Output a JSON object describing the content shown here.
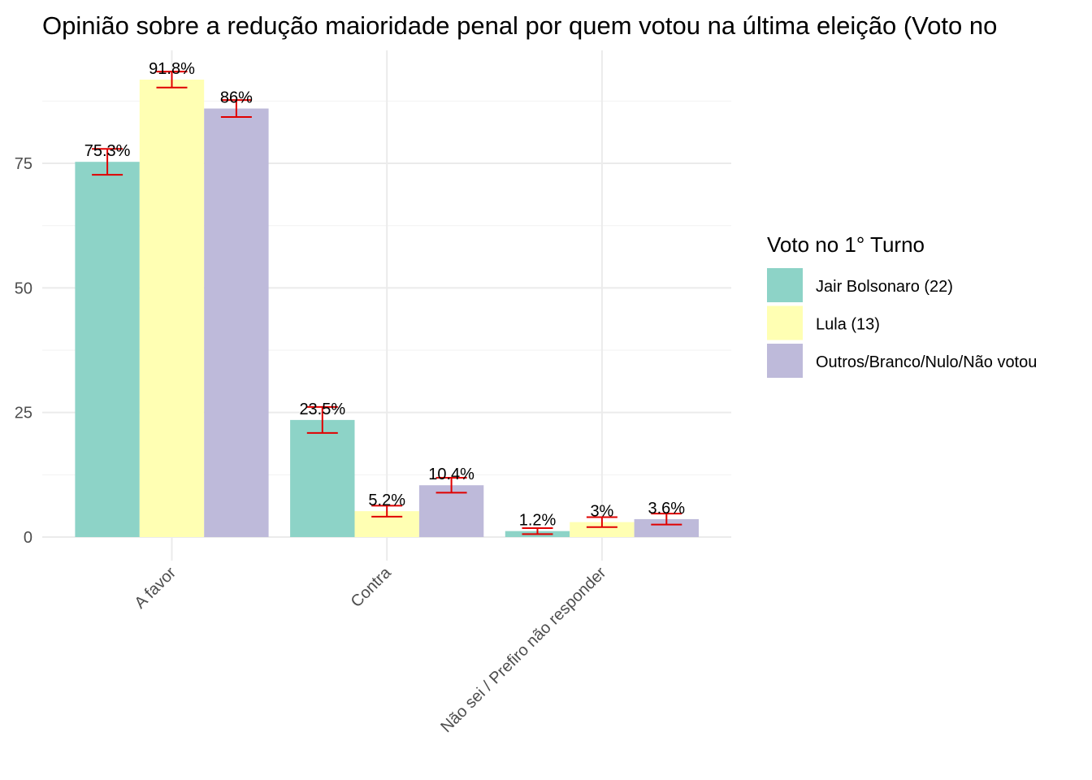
{
  "chart_data": {
    "type": "bar",
    "title": "Opinião sobre a redução maioridade penal por quem votou na última eleição (Voto no",
    "xlabel": "",
    "ylabel": "",
    "categories": [
      "A favor",
      "Contra",
      "Não sei / Prefiro não responder"
    ],
    "ylim": [
      0,
      97
    ],
    "yticks": [
      0,
      25,
      50,
      75
    ],
    "grid": true,
    "legend": {
      "title": "Voto no 1° Turno",
      "position": "right"
    },
    "error_bar_color": "#e00000",
    "series": [
      {
        "name": "Jair Bolsonaro (22)",
        "color": "#8dd3c7",
        "values": [
          75.3,
          23.5,
          1.2
        ],
        "labels": [
          "75.3%",
          "23.5%",
          "1.2%"
        ],
        "err_low": [
          72.7,
          20.9,
          0.6
        ],
        "err_high": [
          77.9,
          26.1,
          1.8
        ]
      },
      {
        "name": "Lula (13)",
        "color": "#ffffb3",
        "values": [
          91.8,
          5.2,
          3
        ],
        "labels": [
          "91.8%",
          "5.2%",
          "3%"
        ],
        "err_low": [
          90.2,
          4.1,
          2.0
        ],
        "err_high": [
          93.4,
          6.3,
          4.0
        ]
      },
      {
        "name": "Outros/Branco/Nulo/Não votou",
        "color": "#bebada",
        "values": [
          86,
          10.4,
          3.6
        ],
        "labels": [
          "86%",
          "10.4%",
          "3.6%"
        ],
        "err_low": [
          84.3,
          8.9,
          2.5
        ],
        "err_high": [
          87.7,
          11.9,
          4.7
        ]
      }
    ]
  }
}
